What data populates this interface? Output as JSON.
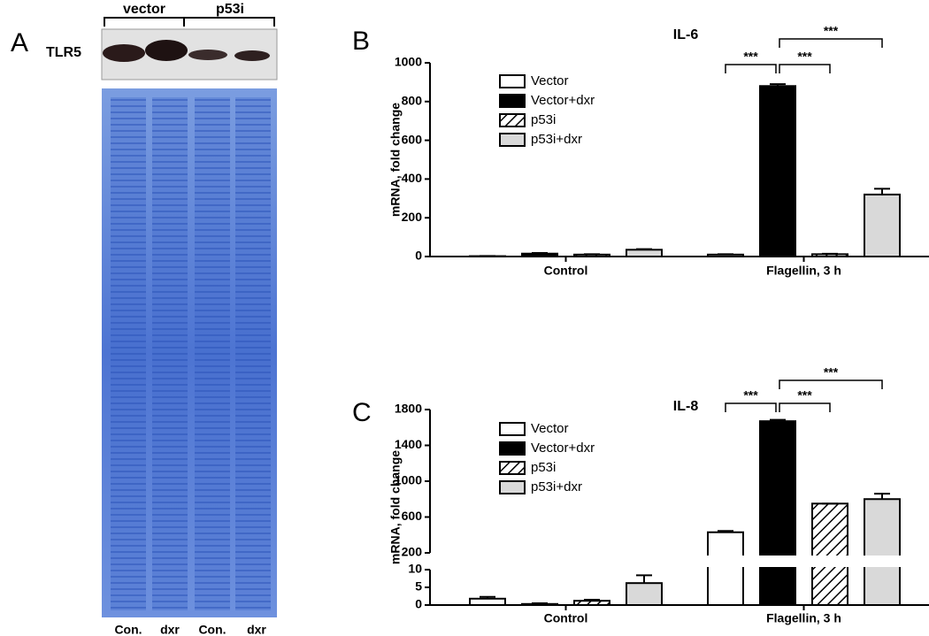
{
  "gel": {
    "panel": "A",
    "protein": "TLR5",
    "groups": [
      "vector",
      "p53i"
    ],
    "lanes": [
      "Con.",
      "dxr",
      "Con.",
      "dxr"
    ]
  },
  "chart_data": [
    {
      "type": "bar",
      "panel": "B",
      "title": "IL-6",
      "y_label": "mRNA, fold change",
      "categories": [
        "Control",
        "Flagellin, 3 h"
      ],
      "series": [
        {
          "name": "Vector",
          "color": "#ffffff",
          "values": [
            2,
            10
          ],
          "errors": [
            1,
            2
          ]
        },
        {
          "name": "Vector+dxr",
          "color": "#000000",
          "values": [
            15,
            880
          ],
          "errors": [
            3,
            10
          ]
        },
        {
          "name": "p53i",
          "color": "#ffffff",
          "hatch": true,
          "values": [
            10,
            12
          ],
          "errors": [
            2,
            2
          ]
        },
        {
          "name": "p53i+dxr",
          "color": "#d9d9d9",
          "values": [
            35,
            320
          ],
          "errors": [
            3,
            30
          ]
        }
      ],
      "ylim": [
        0,
        1000
      ],
      "yticks": [
        0,
        200,
        400,
        600,
        800,
        1000
      ],
      "significance": [
        "***",
        "***",
        "***"
      ]
    },
    {
      "type": "bar",
      "panel": "C",
      "title": "IL-8",
      "y_label": "mRNA, fold change",
      "categories": [
        "Control",
        "Flagellin, 3 h"
      ],
      "series": [
        {
          "name": "Vector",
          "color": "#ffffff",
          "values": [
            1.8,
            430
          ],
          "errors": [
            0.5,
            15
          ]
        },
        {
          "name": "Vector+dxr",
          "color": "#000000",
          "values": [
            0.3,
            1670
          ],
          "errors": [
            0.2,
            15
          ]
        },
        {
          "name": "p53i",
          "color": "#ffffff",
          "hatch": true,
          "values": [
            1.2,
            750
          ],
          "errors": [
            0.3,
            0
          ]
        },
        {
          "name": "p53i+dxr",
          "color": "#d9d9d9",
          "values": [
            6.2,
            800
          ],
          "errors": [
            2.2,
            60
          ]
        }
      ],
      "ylim": [
        0,
        1800
      ],
      "broken_axis": [
        [
          0,
          10
        ],
        [
          200,
          1800
        ]
      ],
      "yticks": [
        0,
        5,
        10,
        200,
        600,
        1000,
        1400,
        1800
      ],
      "significance": [
        "***",
        "***",
        "***"
      ]
    }
  ]
}
